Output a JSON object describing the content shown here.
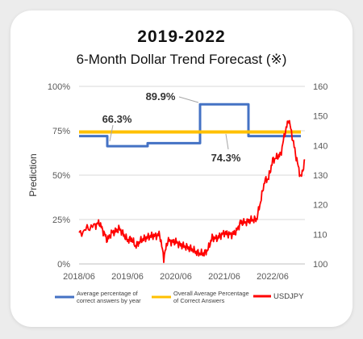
{
  "title": "2019-2022",
  "subtitle": "6-Month Dollar Trend Forecast (※)",
  "chart_data": {
    "type": "line",
    "ylabel": "Prediction",
    "x_ticks": [
      "2018/06",
      "2019/06",
      "2020/06",
      "2021/06",
      "2022/06"
    ],
    "x_range": [
      "2018/06",
      "2023/02"
    ],
    "y_left": {
      "range": [
        0,
        100
      ],
      "ticks": [
        "0%",
        "25%",
        "50%",
        "75%",
        "100%"
      ]
    },
    "y_right": {
      "range": [
        100,
        160
      ],
      "ticks": [
        "100",
        "110",
        "120",
        "130",
        "140",
        "150",
        "160"
      ]
    },
    "grid": true,
    "legend_placement": "bottom",
    "colors": {
      "avg_by_year": "#4472C4",
      "overall": "#FFC000",
      "usdjpy": "#FF0000"
    },
    "series": [
      {
        "name": "Average percentage of correct answers by year",
        "axis": "left",
        "points": [
          [
            "2018/06",
            72
          ],
          [
            "2019/01",
            72
          ],
          [
            "2019/01",
            66.3
          ],
          [
            "2019/11",
            66.3
          ],
          [
            "2019/11",
            68
          ],
          [
            "2020/12",
            68
          ],
          [
            "2020/12",
            89.9
          ],
          [
            "2021/12",
            89.9
          ],
          [
            "2021/12",
            72
          ],
          [
            "2023/01",
            72
          ]
        ]
      },
      {
        "name": "Overall Average Percentage of Correct Answers",
        "axis": "left",
        "points": [
          [
            "2018/06",
            74.3
          ],
          [
            "2023/01",
            74.3
          ]
        ]
      },
      {
        "name": "USDJPY",
        "axis": "right",
        "points": [
          [
            "2018/06",
            110
          ],
          [
            "2018/08",
            112
          ],
          [
            "2018/10",
            113
          ],
          [
            "2018/11",
            114
          ],
          [
            "2018/12",
            111
          ],
          [
            "2019/01",
            108
          ],
          [
            "2019/02",
            110.5
          ],
          [
            "2019/03",
            111
          ],
          [
            "2019/04",
            112
          ],
          [
            "2019/05",
            110
          ],
          [
            "2019/06",
            108
          ],
          [
            "2019/07",
            108.5
          ],
          [
            "2019/08",
            106
          ],
          [
            "2019/09",
            107.5
          ],
          [
            "2019/10",
            108.5
          ],
          [
            "2019/11",
            109
          ],
          [
            "2019/12",
            109.5
          ],
          [
            "2020/01",
            109.5
          ],
          [
            "2020/02",
            110
          ],
          [
            "2020/03",
            102
          ],
          [
            "2020/04",
            108
          ],
          [
            "2020/05",
            107.5
          ],
          [
            "2020/06",
            107.5
          ],
          [
            "2020/07",
            106.5
          ],
          [
            "2020/08",
            106
          ],
          [
            "2020/09",
            105.5
          ],
          [
            "2020/10",
            105
          ],
          [
            "2020/11",
            104
          ],
          [
            "2020/12",
            103.5
          ],
          [
            "2021/01",
            103.5
          ],
          [
            "2021/02",
            105
          ],
          [
            "2021/03",
            109
          ],
          [
            "2021/04",
            108.5
          ],
          [
            "2021/05",
            109.5
          ],
          [
            "2021/06",
            110.5
          ],
          [
            "2021/07",
            110
          ],
          [
            "2021/08",
            110
          ],
          [
            "2021/09",
            111
          ],
          [
            "2021/10",
            114
          ],
          [
            "2021/11",
            114
          ],
          [
            "2021/12",
            114.5
          ],
          [
            "2022/01",
            115
          ],
          [
            "2022/02",
            115
          ],
          [
            "2022/03",
            121
          ],
          [
            "2022/04",
            128
          ],
          [
            "2022/05",
            129
          ],
          [
            "2022/06",
            135
          ],
          [
            "2022/07",
            136
          ],
          [
            "2022/08",
            137
          ],
          [
            "2022/09",
            144
          ],
          [
            "2022/10",
            149
          ],
          [
            "2022/11",
            142
          ],
          [
            "2022/12",
            135
          ],
          [
            "2023/01",
            129
          ],
          [
            "2023/02",
            135
          ]
        ]
      }
    ],
    "annotations": [
      {
        "text": "66.3%",
        "x": "2019/01",
        "y": 66.3
      },
      {
        "text": "89.9%",
        "x": "2020/06",
        "y": 89.9
      },
      {
        "text": "74.3%",
        "x": "2021/03",
        "y": 74.3
      }
    ]
  },
  "legend": [
    {
      "label": "Average percentage of correct answers by year",
      "color": "#4472C4"
    },
    {
      "label": "Overall Average Percentage of Correct Answers",
      "color": "#FFC000"
    },
    {
      "label": "USDJPY",
      "color": "#FF0000"
    }
  ]
}
